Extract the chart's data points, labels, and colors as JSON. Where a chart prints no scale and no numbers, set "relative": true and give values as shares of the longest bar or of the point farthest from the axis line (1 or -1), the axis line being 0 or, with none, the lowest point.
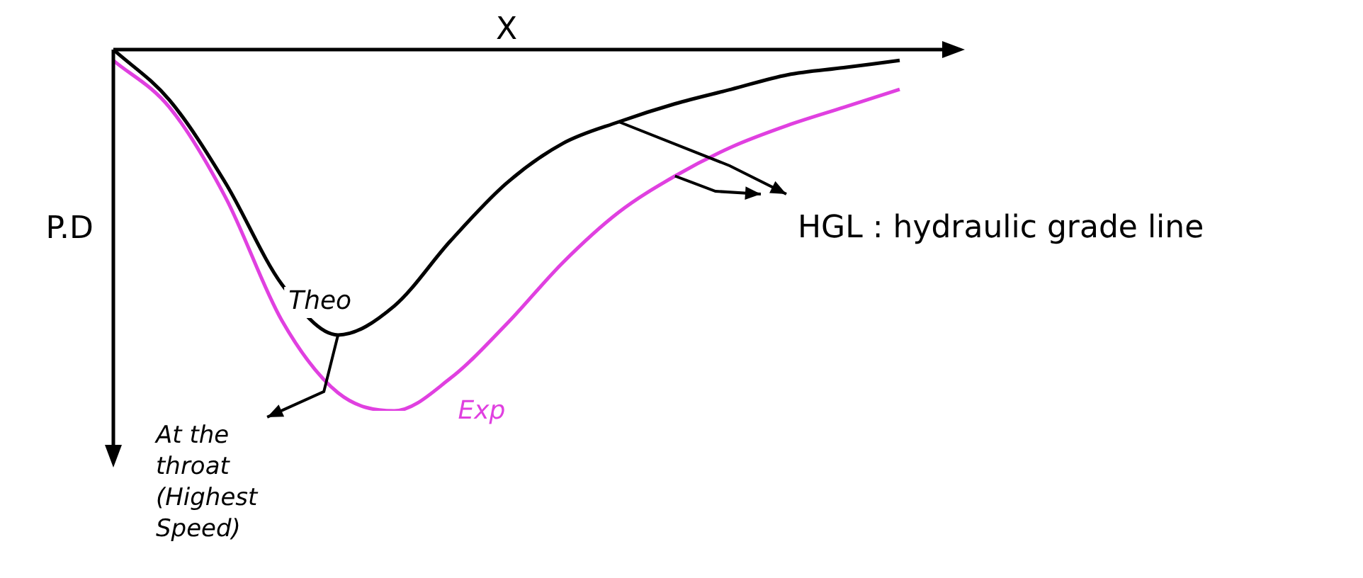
{
  "chart_data": {
    "type": "line",
    "relative": true,
    "xlabel": "X",
    "ylabel": "P.D",
    "categories": [
      null,
      null,
      null,
      null,
      null,
      null,
      null,
      null,
      null,
      null,
      null,
      null,
      null,
      null,
      null
    ],
    "series": [
      {
        "name": "Theo",
        "color": "#000000",
        "values": [
          0,
          -0.14,
          -0.37,
          -0.65,
          -0.79,
          -0.71,
          -0.53,
          -0.37,
          -0.26,
          -0.2,
          -0.15,
          -0.11,
          -0.07,
          -0.05,
          -0.03
        ]
      },
      {
        "name": "Exp",
        "color": "#e040e0",
        "values": [
          -0.03,
          -0.16,
          -0.41,
          -0.75,
          -0.95,
          -1,
          -0.91,
          -0.76,
          -0.59,
          -0.45,
          -0.35,
          -0.27,
          -0.21,
          -0.16,
          -0.11
        ]
      }
    ],
    "annotations": [
      "HGL : hydraulic grade line",
      "At the throat (Highest Speed)"
    ],
    "legend": false,
    "grid": false,
    "marker": "none",
    "line_style": "solid"
  }
}
